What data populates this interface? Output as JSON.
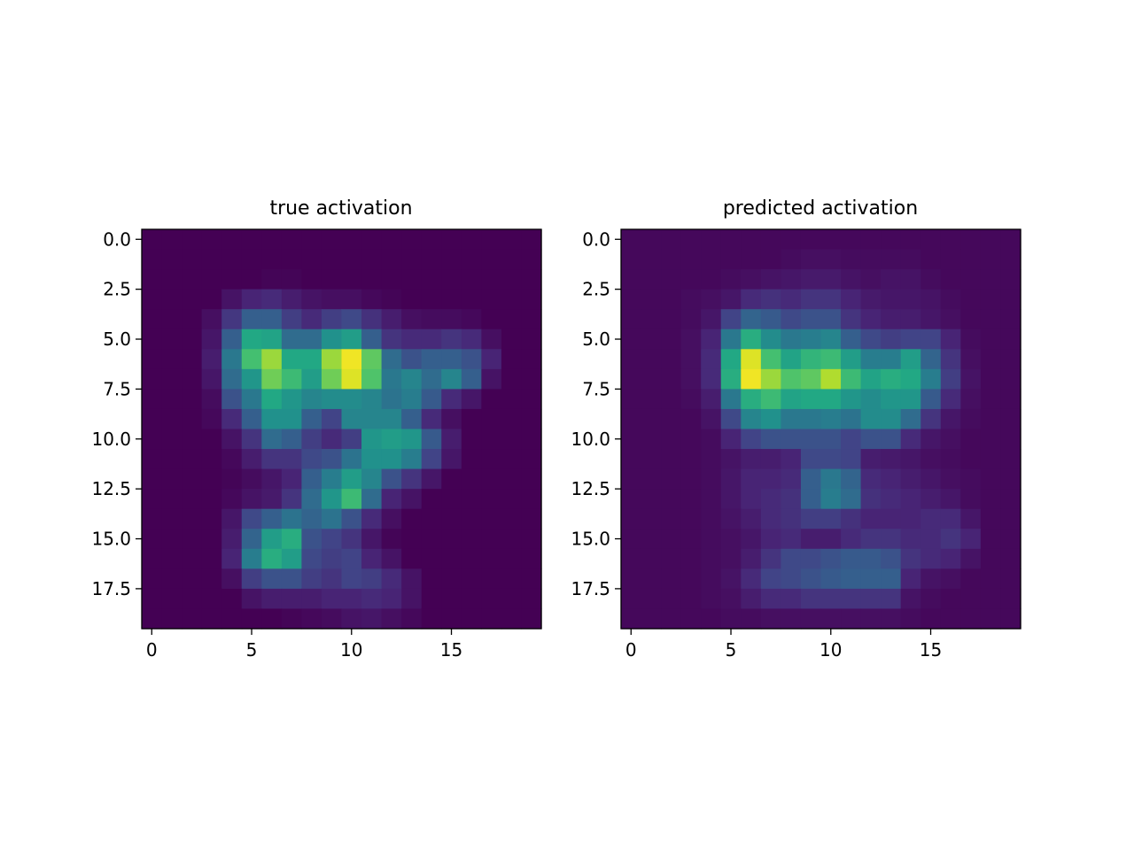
{
  "chart_data": [
    {
      "type": "heatmap",
      "title": "true activation",
      "xlabel": "",
      "ylabel": "",
      "grid": false,
      "colormap": "viridis",
      "value_range": [
        0,
        1
      ],
      "x_ticks": [
        0,
        5,
        10,
        15
      ],
      "x_tick_labels": [
        "0",
        "5",
        "10",
        "15"
      ],
      "y_ticks": [
        0,
        2.5,
        5,
        7.5,
        10,
        12.5,
        15,
        17.5
      ],
      "y_tick_labels": [
        "0.0",
        "2.5",
        "5.0",
        "7.5",
        "10.0",
        "12.5",
        "15.0",
        "17.5"
      ],
      "xlim": [
        -0.5,
        19.5
      ],
      "ylim": [
        19.5,
        -0.5
      ],
      "values": [
        [
          0,
          0,
          0,
          0,
          0,
          0,
          0,
          0,
          0,
          0,
          0,
          0,
          0,
          0,
          0,
          0,
          0,
          0,
          0,
          0
        ],
        [
          0,
          0,
          0,
          0,
          0,
          0,
          0,
          0,
          0,
          0,
          0,
          0,
          0,
          0,
          0,
          0,
          0,
          0,
          0,
          0
        ],
        [
          0,
          0,
          0,
          0,
          0,
          0,
          0.01,
          0.01,
          0,
          0,
          0,
          0,
          0,
          0,
          0,
          0,
          0,
          0,
          0,
          0
        ],
        [
          0,
          0,
          0,
          0,
          0.05,
          0.1,
          0.12,
          0.08,
          0.05,
          0.04,
          0.04,
          0.02,
          0.01,
          0,
          0,
          0,
          0,
          0,
          0,
          0
        ],
        [
          0,
          0,
          0,
          0.04,
          0.16,
          0.3,
          0.3,
          0.18,
          0.12,
          0.18,
          0.22,
          0.14,
          0.08,
          0.04,
          0.03,
          0.03,
          0.02,
          0,
          0,
          0
        ],
        [
          0,
          0,
          0,
          0.06,
          0.3,
          0.6,
          0.58,
          0.35,
          0.35,
          0.5,
          0.55,
          0.3,
          0.15,
          0.12,
          0.12,
          0.15,
          0.12,
          0.04,
          0,
          0
        ],
        [
          0,
          0,
          0,
          0.08,
          0.4,
          0.7,
          0.85,
          0.6,
          0.6,
          0.85,
          0.98,
          0.75,
          0.35,
          0.25,
          0.3,
          0.3,
          0.25,
          0.1,
          0,
          0
        ],
        [
          0,
          0,
          0,
          0.06,
          0.35,
          0.52,
          0.78,
          0.68,
          0.55,
          0.78,
          0.95,
          0.72,
          0.4,
          0.45,
          0.35,
          0.45,
          0.3,
          0.05,
          0,
          0
        ],
        [
          0,
          0,
          0,
          0.03,
          0.25,
          0.4,
          0.6,
          0.52,
          0.45,
          0.48,
          0.48,
          0.45,
          0.38,
          0.42,
          0.28,
          0.12,
          0.06,
          0,
          0,
          0
        ],
        [
          0,
          0,
          0,
          0.02,
          0.12,
          0.3,
          0.5,
          0.5,
          0.3,
          0.2,
          0.45,
          0.45,
          0.45,
          0.3,
          0.12,
          0.04,
          0,
          0,
          0,
          0
        ],
        [
          0,
          0,
          0,
          0,
          0.05,
          0.15,
          0.35,
          0.3,
          0.18,
          0.12,
          0.18,
          0.52,
          0.55,
          0.52,
          0.28,
          0.08,
          0,
          0,
          0,
          0
        ],
        [
          0,
          0,
          0,
          0,
          0.02,
          0.08,
          0.15,
          0.15,
          0.22,
          0.25,
          0.38,
          0.5,
          0.5,
          0.42,
          0.2,
          0.06,
          0,
          0,
          0,
          0
        ],
        [
          0,
          0,
          0,
          0,
          0.01,
          0.03,
          0.06,
          0.1,
          0.3,
          0.42,
          0.55,
          0.45,
          0.25,
          0.15,
          0.06,
          0,
          0,
          0,
          0,
          0
        ],
        [
          0,
          0,
          0,
          0,
          0.02,
          0.05,
          0.07,
          0.15,
          0.35,
          0.52,
          0.68,
          0.35,
          0.1,
          0.05,
          0,
          0,
          0,
          0,
          0,
          0
        ],
        [
          0,
          0,
          0,
          0,
          0.06,
          0.22,
          0.3,
          0.38,
          0.32,
          0.38,
          0.25,
          0.12,
          0.04,
          0,
          0,
          0,
          0,
          0,
          0,
          0
        ],
        [
          0,
          0,
          0,
          0,
          0.08,
          0.32,
          0.55,
          0.62,
          0.25,
          0.2,
          0.15,
          0.06,
          0.01,
          0,
          0,
          0,
          0,
          0,
          0,
          0
        ],
        [
          0,
          0,
          0,
          0,
          0.1,
          0.42,
          0.62,
          0.55,
          0.22,
          0.18,
          0.2,
          0.1,
          0.05,
          0,
          0,
          0,
          0,
          0,
          0,
          0
        ],
        [
          0,
          0,
          0,
          0,
          0.04,
          0.18,
          0.25,
          0.25,
          0.18,
          0.15,
          0.2,
          0.18,
          0.12,
          0.05,
          0,
          0,
          0,
          0,
          0,
          0
        ],
        [
          0,
          0,
          0,
          0,
          0,
          0.05,
          0.08,
          0.08,
          0.08,
          0.1,
          0.1,
          0.12,
          0.1,
          0.05,
          0,
          0,
          0,
          0,
          0,
          0
        ],
        [
          0,
          0,
          0,
          0,
          0,
          0,
          0,
          0.01,
          0.02,
          0.03,
          0.05,
          0.06,
          0.04,
          0.02,
          0,
          0,
          0,
          0,
          0,
          0
        ]
      ]
    },
    {
      "type": "heatmap",
      "title": "predicted activation",
      "xlabel": "",
      "ylabel": "",
      "grid": false,
      "colormap": "viridis",
      "value_range": [
        0,
        1
      ],
      "x_ticks": [
        0,
        5,
        10,
        15
      ],
      "x_tick_labels": [
        "0",
        "5",
        "10",
        "15"
      ],
      "y_ticks": [
        0,
        2.5,
        5,
        7.5,
        10,
        12.5,
        15,
        17.5
      ],
      "y_tick_labels": [
        "0.0",
        "2.5",
        "5.0",
        "7.5",
        "10.0",
        "12.5",
        "15.0",
        "17.5"
      ],
      "xlim": [
        -0.5,
        19.5
      ],
      "ylim": [
        19.5,
        -0.5
      ],
      "values": [
        [
          0.02,
          0.02,
          0.02,
          0.02,
          0.02,
          0.02,
          0.02,
          0.02,
          0.02,
          0.02,
          0.02,
          0.02,
          0.02,
          0.02,
          0.02,
          0.02,
          0.02,
          0.02,
          0.02,
          0.02
        ],
        [
          0.02,
          0.02,
          0.02,
          0.02,
          0.02,
          0.02,
          0.02,
          0.02,
          0.03,
          0.04,
          0.04,
          0.03,
          0.03,
          0.03,
          0.03,
          0.02,
          0.02,
          0.02,
          0.02,
          0.02
        ],
        [
          0.02,
          0.02,
          0.02,
          0.02,
          0.02,
          0.03,
          0.04,
          0.05,
          0.06,
          0.07,
          0.07,
          0.05,
          0.04,
          0.05,
          0.05,
          0.03,
          0.02,
          0.02,
          0.02,
          0.02
        ],
        [
          0.02,
          0.02,
          0.02,
          0.03,
          0.04,
          0.06,
          0.12,
          0.14,
          0.12,
          0.15,
          0.15,
          0.1,
          0.07,
          0.06,
          0.06,
          0.05,
          0.03,
          0.02,
          0.02,
          0.02
        ],
        [
          0.02,
          0.02,
          0.02,
          0.03,
          0.06,
          0.2,
          0.32,
          0.28,
          0.22,
          0.25,
          0.25,
          0.15,
          0.1,
          0.08,
          0.08,
          0.06,
          0.04,
          0.02,
          0.02,
          0.02
        ],
        [
          0.02,
          0.02,
          0.02,
          0.04,
          0.1,
          0.4,
          0.62,
          0.48,
          0.4,
          0.42,
          0.45,
          0.3,
          0.22,
          0.18,
          0.2,
          0.2,
          0.1,
          0.03,
          0.02,
          0.02
        ],
        [
          0.02,
          0.02,
          0.02,
          0.04,
          0.12,
          0.6,
          0.95,
          0.7,
          0.58,
          0.65,
          0.68,
          0.55,
          0.42,
          0.42,
          0.55,
          0.32,
          0.15,
          0.04,
          0.02,
          0.02
        ],
        [
          0.02,
          0.02,
          0.02,
          0.04,
          0.12,
          0.62,
          0.98,
          0.85,
          0.72,
          0.75,
          0.88,
          0.68,
          0.58,
          0.62,
          0.6,
          0.42,
          0.18,
          0.05,
          0.02,
          0.02
        ],
        [
          0.02,
          0.02,
          0.02,
          0.03,
          0.08,
          0.4,
          0.62,
          0.68,
          0.58,
          0.6,
          0.6,
          0.52,
          0.48,
          0.52,
          0.52,
          0.28,
          0.12,
          0.04,
          0.02,
          0.02
        ],
        [
          0.02,
          0.02,
          0.02,
          0.02,
          0.05,
          0.22,
          0.45,
          0.5,
          0.4,
          0.4,
          0.42,
          0.38,
          0.48,
          0.48,
          0.35,
          0.15,
          0.06,
          0.03,
          0.02,
          0.02
        ],
        [
          0.02,
          0.02,
          0.02,
          0.02,
          0.03,
          0.1,
          0.2,
          0.25,
          0.25,
          0.25,
          0.25,
          0.2,
          0.25,
          0.25,
          0.12,
          0.06,
          0.04,
          0.02,
          0.02,
          0.02
        ],
        [
          0.02,
          0.02,
          0.02,
          0.02,
          0.03,
          0.05,
          0.08,
          0.08,
          0.1,
          0.22,
          0.22,
          0.2,
          0.08,
          0.07,
          0.06,
          0.04,
          0.03,
          0.02,
          0.02,
          0.02
        ],
        [
          0.02,
          0.02,
          0.02,
          0.02,
          0.03,
          0.06,
          0.1,
          0.1,
          0.12,
          0.3,
          0.4,
          0.32,
          0.12,
          0.1,
          0.08,
          0.06,
          0.04,
          0.03,
          0.02,
          0.02
        ],
        [
          0.02,
          0.02,
          0.02,
          0.02,
          0.03,
          0.06,
          0.1,
          0.12,
          0.14,
          0.3,
          0.42,
          0.35,
          0.14,
          0.12,
          0.1,
          0.08,
          0.06,
          0.03,
          0.02,
          0.02
        ],
        [
          0.02,
          0.02,
          0.02,
          0.02,
          0.03,
          0.05,
          0.08,
          0.12,
          0.14,
          0.18,
          0.18,
          0.14,
          0.1,
          0.1,
          0.1,
          0.12,
          0.12,
          0.06,
          0.02,
          0.02
        ],
        [
          0.02,
          0.02,
          0.02,
          0.02,
          0.03,
          0.04,
          0.06,
          0.1,
          0.12,
          0.08,
          0.08,
          0.12,
          0.15,
          0.15,
          0.12,
          0.12,
          0.15,
          0.1,
          0.02,
          0.02
        ],
        [
          0.02,
          0.02,
          0.02,
          0.02,
          0.03,
          0.04,
          0.08,
          0.15,
          0.22,
          0.22,
          0.25,
          0.28,
          0.28,
          0.25,
          0.15,
          0.12,
          0.1,
          0.05,
          0.02,
          0.02
        ],
        [
          0.02,
          0.02,
          0.02,
          0.02,
          0.03,
          0.05,
          0.12,
          0.2,
          0.22,
          0.25,
          0.28,
          0.3,
          0.3,
          0.3,
          0.1,
          0.05,
          0.04,
          0.02,
          0.02,
          0.02
        ],
        [
          0.02,
          0.02,
          0.02,
          0.02,
          0.03,
          0.04,
          0.08,
          0.12,
          0.12,
          0.15,
          0.15,
          0.15,
          0.15,
          0.15,
          0.05,
          0.03,
          0.02,
          0.02,
          0.02,
          0.02
        ],
        [
          0.02,
          0.02,
          0.02,
          0.02,
          0.02,
          0.03,
          0.03,
          0.04,
          0.04,
          0.04,
          0.04,
          0.04,
          0.04,
          0.04,
          0.03,
          0.02,
          0.02,
          0.02,
          0.02,
          0.02
        ]
      ]
    }
  ]
}
